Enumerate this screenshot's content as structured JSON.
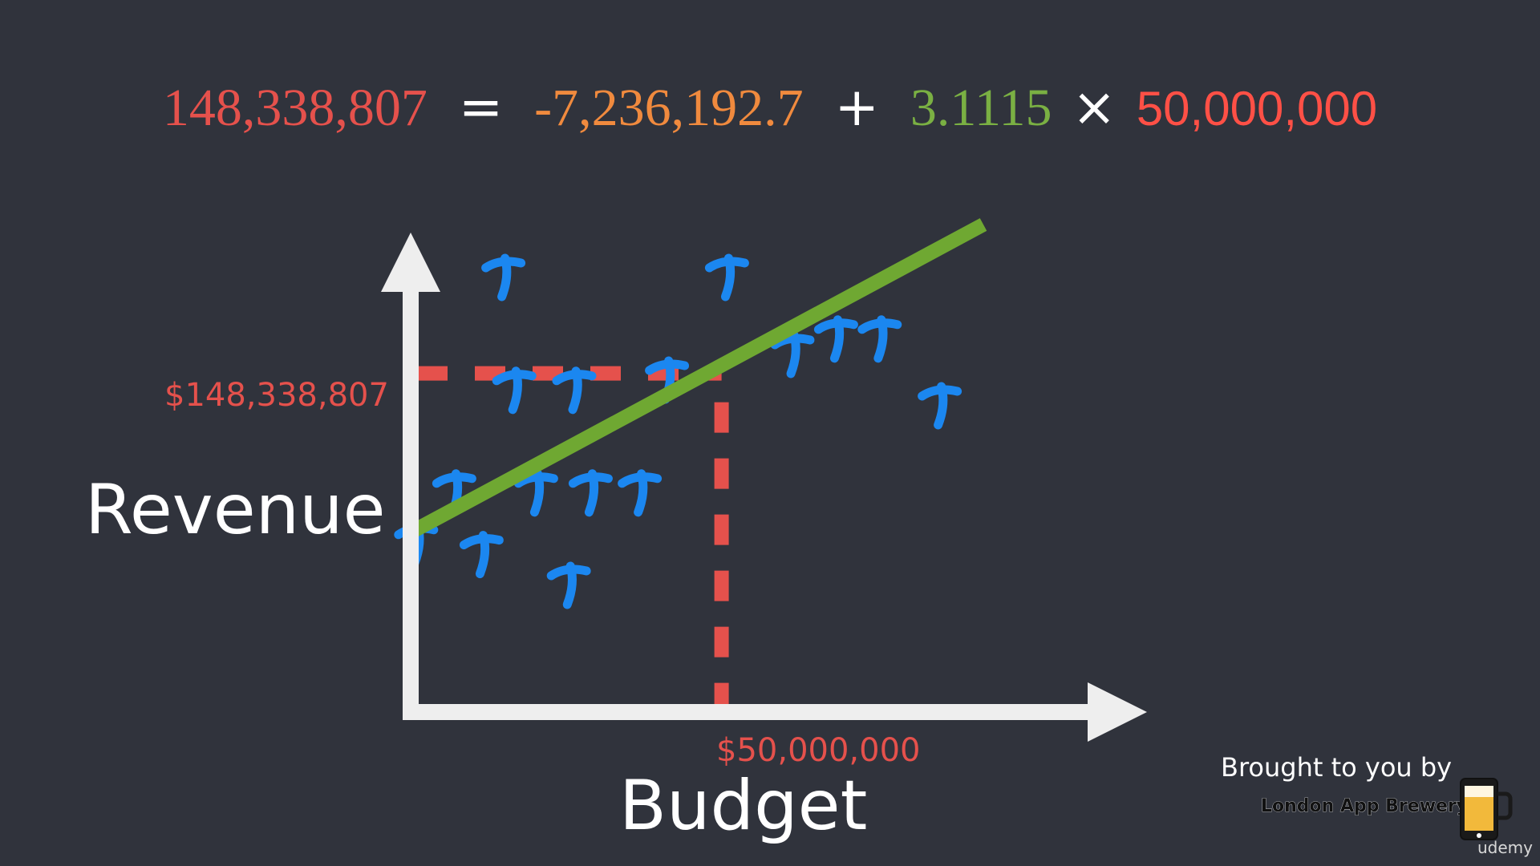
{
  "equation": {
    "result": "148,338,807",
    "equals": "=",
    "intercept": "-7,236,192.7",
    "plus": "+",
    "slope": "3.1115",
    "times": "×",
    "x_value": "50,000,000"
  },
  "chart_data": {
    "type": "scatter",
    "title": "",
    "xlabel": "Budget",
    "ylabel": "Revenue",
    "x_highlight_label": "$50,000,000",
    "y_highlight_label": "$148,338,807",
    "xlim": [
      0,
      100
    ],
    "ylim": [
      0,
      100
    ],
    "points": [
      {
        "x": 1,
        "y": 33
      },
      {
        "x": 8,
        "y": 43
      },
      {
        "x": 13,
        "y": 31
      },
      {
        "x": 17,
        "y": 85
      },
      {
        "x": 19,
        "y": 63
      },
      {
        "x": 23,
        "y": 43
      },
      {
        "x": 29,
        "y": 25
      },
      {
        "x": 30,
        "y": 63
      },
      {
        "x": 33,
        "y": 43
      },
      {
        "x": 42,
        "y": 43
      },
      {
        "x": 47,
        "y": 65
      },
      {
        "x": 58,
        "y": 85
      },
      {
        "x": 70,
        "y": 70
      },
      {
        "x": 78,
        "y": 73
      },
      {
        "x": 86,
        "y": 73
      },
      {
        "x": 97,
        "y": 60
      }
    ],
    "regression_line": {
      "x": [
        0,
        105
      ],
      "y": [
        35,
        95
      ]
    },
    "highlight_point": {
      "x": 57,
      "y": 66
    },
    "colors": {
      "points": "#1b87f0",
      "line": "#6fa832",
      "guides": "#e5514c",
      "axes": "#eeeeee"
    }
  },
  "credit": {
    "line1": "Brought to you by",
    "line2": "London App Brewery",
    "logo_icon": "beer-mug-phone-icon"
  },
  "watermark": "udemy"
}
